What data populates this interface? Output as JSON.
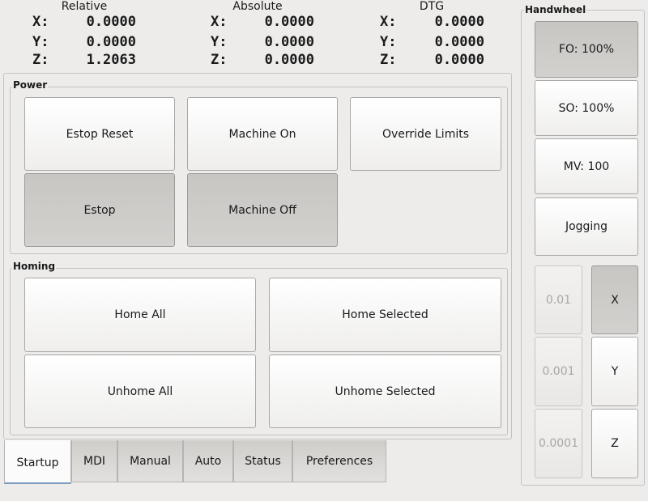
{
  "dro": {
    "relative": {
      "title": "Relative",
      "x": "0.0000",
      "y": "0.0000",
      "z": "1.2063"
    },
    "absolute": {
      "title": "Absolute",
      "x": "0.0000",
      "y": "0.0000",
      "z": "0.0000"
    },
    "dtg": {
      "title": "DTG",
      "x": "0.0000",
      "y": "0.0000",
      "z": "0.0000"
    },
    "labels": {
      "x": "X:",
      "y": "Y:",
      "z": "Z:"
    }
  },
  "power": {
    "title": "Power",
    "estop_reset": "Estop Reset",
    "machine_on": "Machine On",
    "override_limits": "Override Limits",
    "estop": "Estop",
    "machine_off": "Machine Off"
  },
  "homing": {
    "title": "Homing",
    "home_all": "Home All",
    "home_selected": "Home Selected",
    "unhome_all": "Unhome All",
    "unhome_selected": "Unhome Selected"
  },
  "tabs": [
    {
      "label": "Startup",
      "active": true
    },
    {
      "label": "MDI"
    },
    {
      "label": "Manual"
    },
    {
      "label": "Auto"
    },
    {
      "label": "Status"
    },
    {
      "label": "Preferences"
    }
  ],
  "handwheel": {
    "title": "Handwheel",
    "fo": "FO: 100%",
    "so": "SO: 100%",
    "mv": "MV: 100",
    "jogging": "Jogging",
    "increments": [
      "0.01",
      "0.001",
      "0.0001"
    ],
    "axes": [
      "X",
      "Y",
      "Z"
    ],
    "selected_axis": "X",
    "selected_mode": "FO"
  }
}
